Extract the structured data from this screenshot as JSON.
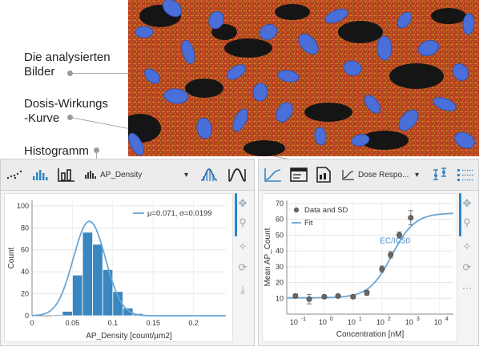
{
  "annotations": {
    "images_line1": "Die analysierten",
    "images_line2": "Bilder",
    "dose_line1": "Dosis-Wirkungs",
    "dose_line2": "-Kurve",
    "histogram": "Histogramm"
  },
  "histogram_panel": {
    "toolbar": {
      "measure_select": "AP_Density",
      "dropdown_arrow": "▾"
    },
    "legend_text": "μ=0.071, σ=0.0199"
  },
  "dose_panel": {
    "toolbar": {
      "plot_select": "Dose Respo...",
      "dropdown_arrow": "▾"
    },
    "legend": {
      "data_label": "Data and SD",
      "fit_label": "Fit"
    },
    "annotation": "EC/IC50"
  },
  "colors": {
    "bar": "#3a86c0",
    "fit": "#6aa6d6",
    "marker": "#666666",
    "accent": "#2f85c4"
  },
  "chart_data": [
    {
      "type": "bar",
      "title": "",
      "xlabel": "AP_Density [count/µm2]",
      "ylabel": "Count",
      "xlim": [
        0,
        0.24
      ],
      "ylim": [
        0,
        105
      ],
      "xticks": [
        "0",
        "0.05",
        "0.1",
        "0.15",
        "0.2"
      ],
      "yticks": [
        "0",
        "20",
        "40",
        "60",
        "80",
        "100"
      ],
      "bin_width": 0.0125,
      "bins": [
        {
          "x0": 0.025,
          "value": 1
        },
        {
          "x0": 0.0375,
          "value": 4
        },
        {
          "x0": 0.05,
          "value": 37
        },
        {
          "x0": 0.0625,
          "value": 76
        },
        {
          "x0": 0.075,
          "value": 65
        },
        {
          "x0": 0.0875,
          "value": 42
        },
        {
          "x0": 0.1,
          "value": 22
        },
        {
          "x0": 0.1125,
          "value": 7
        },
        {
          "x0": 0.125,
          "value": 2
        }
      ],
      "fit": {
        "mu": 0.071,
        "sigma": 0.0199,
        "peak": 86
      },
      "legend_placement": "top-right",
      "grid": true
    },
    {
      "type": "scatter",
      "title": "",
      "xlabel": "Concentration [nM]",
      "ylabel": "Mean AP_Count",
      "xscale": "log",
      "xlim": [
        0.05,
        30000
      ],
      "ylim": [
        0,
        72
      ],
      "xtick_exponents": [
        "-1",
        "0",
        "1",
        "2",
        "3",
        "4"
      ],
      "yticks": [
        "10",
        "20",
        "30",
        "40",
        "50",
        "60",
        "70"
      ],
      "series": [
        {
          "name": "Data and SD",
          "x": [
            0.1,
            0.3,
            1,
            3,
            10,
            30,
            100,
            200,
            400,
            1000
          ],
          "y": [
            11.5,
            9.5,
            11,
            11.5,
            11,
            13.5,
            28.5,
            37.5,
            50,
            61
          ],
          "sd": [
            1.2,
            3,
            1,
            1,
            1,
            1.5,
            2,
            2,
            2,
            4.5
          ]
        }
      ],
      "fit": {
        "bottom": 10.3,
        "top": 64,
        "ec50": 220,
        "hill": 1.1
      },
      "legend_placement": "top-left",
      "grid": true
    }
  ]
}
